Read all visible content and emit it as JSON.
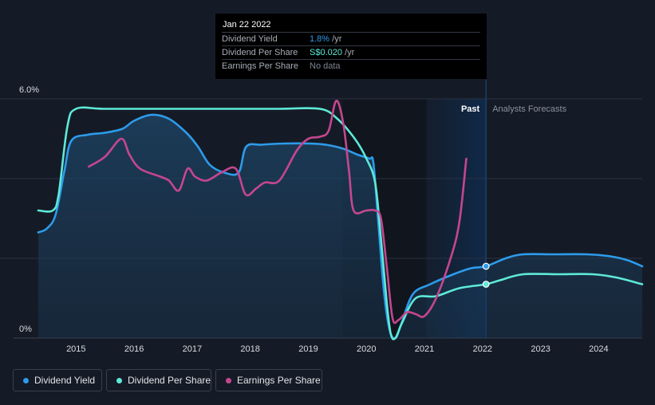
{
  "tooltip": {
    "date": "Jan 22 2022",
    "rows": [
      {
        "label": "Dividend Yield",
        "value": "1.8%",
        "unit": " /yr",
        "color": "#2d9bea"
      },
      {
        "label": "Dividend Per Share",
        "value": "S$0.020",
        "unit": " /yr",
        "color": "#5ee9d8"
      },
      {
        "label": "Earnings Per Share",
        "value": "No data",
        "unit": "",
        "color": "#7c8390"
      }
    ]
  },
  "legend": [
    {
      "label": "Dividend Yield",
      "color": "#2d9bea"
    },
    {
      "label": "Dividend Per Share",
      "color": "#5ee9d8"
    },
    {
      "label": "Earnings Per Share",
      "color": "#c6468f"
    }
  ],
  "chart_data": {
    "type": "line",
    "title": "",
    "xlabel": "",
    "ylabel": "",
    "x_ticks": [
      "2015",
      "2016",
      "2017",
      "2018",
      "2019",
      "2020",
      "2021",
      "2022",
      "2023",
      "2024"
    ],
    "y_ticks": [
      "6.0%",
      "0%"
    ],
    "xlim": [
      2014.35,
      2024.75
    ],
    "ylim": [
      0,
      6.0
    ],
    "past_label": "Past",
    "forecast_label": "Analysts Forecasts",
    "forecast_start": 2022.06,
    "forecast_shade_start": 2021.03,
    "colors": {
      "yield": "#2d9bea",
      "dps": "#5ee9d8",
      "eps": "#c6468f",
      "past_shade": "#0f2a4a"
    },
    "series": [
      {
        "name": "Dividend Yield",
        "key": "yield",
        "values": [
          [
            2014.35,
            2.65
          ],
          [
            2014.5,
            2.75
          ],
          [
            2014.65,
            3.1
          ],
          [
            2014.8,
            4.2
          ],
          [
            2014.92,
            4.95
          ],
          [
            2015.2,
            5.1
          ],
          [
            2015.5,
            5.15
          ],
          [
            2015.8,
            5.25
          ],
          [
            2016.0,
            5.45
          ],
          [
            2016.3,
            5.6
          ],
          [
            2016.6,
            5.5
          ],
          [
            2016.9,
            5.15
          ],
          [
            2017.1,
            4.8
          ],
          [
            2017.3,
            4.35
          ],
          [
            2017.55,
            4.15
          ],
          [
            2017.8,
            4.15
          ],
          [
            2017.93,
            4.8
          ],
          [
            2018.2,
            4.85
          ],
          [
            2018.6,
            4.88
          ],
          [
            2019.0,
            4.88
          ],
          [
            2019.3,
            4.85
          ],
          [
            2019.6,
            4.75
          ],
          [
            2019.85,
            4.6
          ],
          [
            2020.05,
            4.5
          ],
          [
            2020.12,
            4.4
          ],
          [
            2020.2,
            3.0
          ],
          [
            2020.3,
            1.2
          ],
          [
            2020.4,
            0.2
          ],
          [
            2020.5,
            0.0
          ],
          [
            2020.6,
            0.35
          ],
          [
            2020.8,
            1.1
          ],
          [
            2021.1,
            1.35
          ],
          [
            2021.5,
            1.6
          ],
          [
            2021.8,
            1.75
          ],
          [
            2022.06,
            1.8
          ],
          [
            2022.4,
            2.0
          ],
          [
            2022.7,
            2.1
          ],
          [
            2023.2,
            2.1
          ],
          [
            2023.8,
            2.1
          ],
          [
            2024.2,
            2.05
          ],
          [
            2024.5,
            1.95
          ],
          [
            2024.75,
            1.8
          ]
        ]
      },
      {
        "name": "Dividend Per Share",
        "key": "dps",
        "values": [
          [
            2014.35,
            3.2
          ],
          [
            2014.6,
            3.2
          ],
          [
            2014.7,
            3.6
          ],
          [
            2014.85,
            5.3
          ],
          [
            2015.0,
            5.75
          ],
          [
            2015.5,
            5.75
          ],
          [
            2016.5,
            5.75
          ],
          [
            2017.5,
            5.75
          ],
          [
            2018.5,
            5.75
          ],
          [
            2019.2,
            5.75
          ],
          [
            2019.5,
            5.5
          ],
          [
            2019.8,
            5.0
          ],
          [
            2020.0,
            4.5
          ],
          [
            2020.15,
            3.9
          ],
          [
            2020.25,
            2.5
          ],
          [
            2020.35,
            0.9
          ],
          [
            2020.42,
            0.1
          ],
          [
            2020.5,
            0.0
          ],
          [
            2020.62,
            0.4
          ],
          [
            2020.85,
            1.0
          ],
          [
            2021.2,
            1.05
          ],
          [
            2021.6,
            1.25
          ],
          [
            2022.06,
            1.35
          ],
          [
            2022.3,
            1.45
          ],
          [
            2022.7,
            1.6
          ],
          [
            2023.3,
            1.6
          ],
          [
            2023.9,
            1.6
          ],
          [
            2024.3,
            1.52
          ],
          [
            2024.75,
            1.35
          ]
        ]
      },
      {
        "name": "Earnings Per Share",
        "key": "eps",
        "values": [
          [
            2015.22,
            4.3
          ],
          [
            2015.5,
            4.55
          ],
          [
            2015.78,
            5.0
          ],
          [
            2015.92,
            4.6
          ],
          [
            2016.1,
            4.25
          ],
          [
            2016.45,
            4.05
          ],
          [
            2016.6,
            3.95
          ],
          [
            2016.77,
            3.7
          ],
          [
            2016.92,
            4.25
          ],
          [
            2017.05,
            4.05
          ],
          [
            2017.25,
            3.95
          ],
          [
            2017.5,
            4.15
          ],
          [
            2017.75,
            4.25
          ],
          [
            2017.92,
            3.6
          ],
          [
            2018.1,
            3.75
          ],
          [
            2018.25,
            3.9
          ],
          [
            2018.5,
            3.95
          ],
          [
            2018.8,
            4.7
          ],
          [
            2019.0,
            5.0
          ],
          [
            2019.2,
            5.05
          ],
          [
            2019.35,
            5.2
          ],
          [
            2019.48,
            5.95
          ],
          [
            2019.6,
            5.4
          ],
          [
            2019.7,
            4.2
          ],
          [
            2019.78,
            3.2
          ],
          [
            2020.0,
            3.2
          ],
          [
            2020.15,
            3.2
          ],
          [
            2020.25,
            3.0
          ],
          [
            2020.35,
            1.8
          ],
          [
            2020.45,
            0.5
          ],
          [
            2020.55,
            0.45
          ],
          [
            2020.7,
            0.65
          ],
          [
            2020.85,
            0.6
          ],
          [
            2021.0,
            0.55
          ],
          [
            2021.2,
            1.0
          ],
          [
            2021.45,
            2.0
          ],
          [
            2021.6,
            2.9
          ],
          [
            2021.72,
            4.5
          ]
        ]
      }
    ],
    "markers": [
      {
        "series": "yield",
        "x": 2022.06,
        "y": 1.8
      },
      {
        "series": "dps",
        "x": 2022.06,
        "y": 1.35
      }
    ]
  }
}
